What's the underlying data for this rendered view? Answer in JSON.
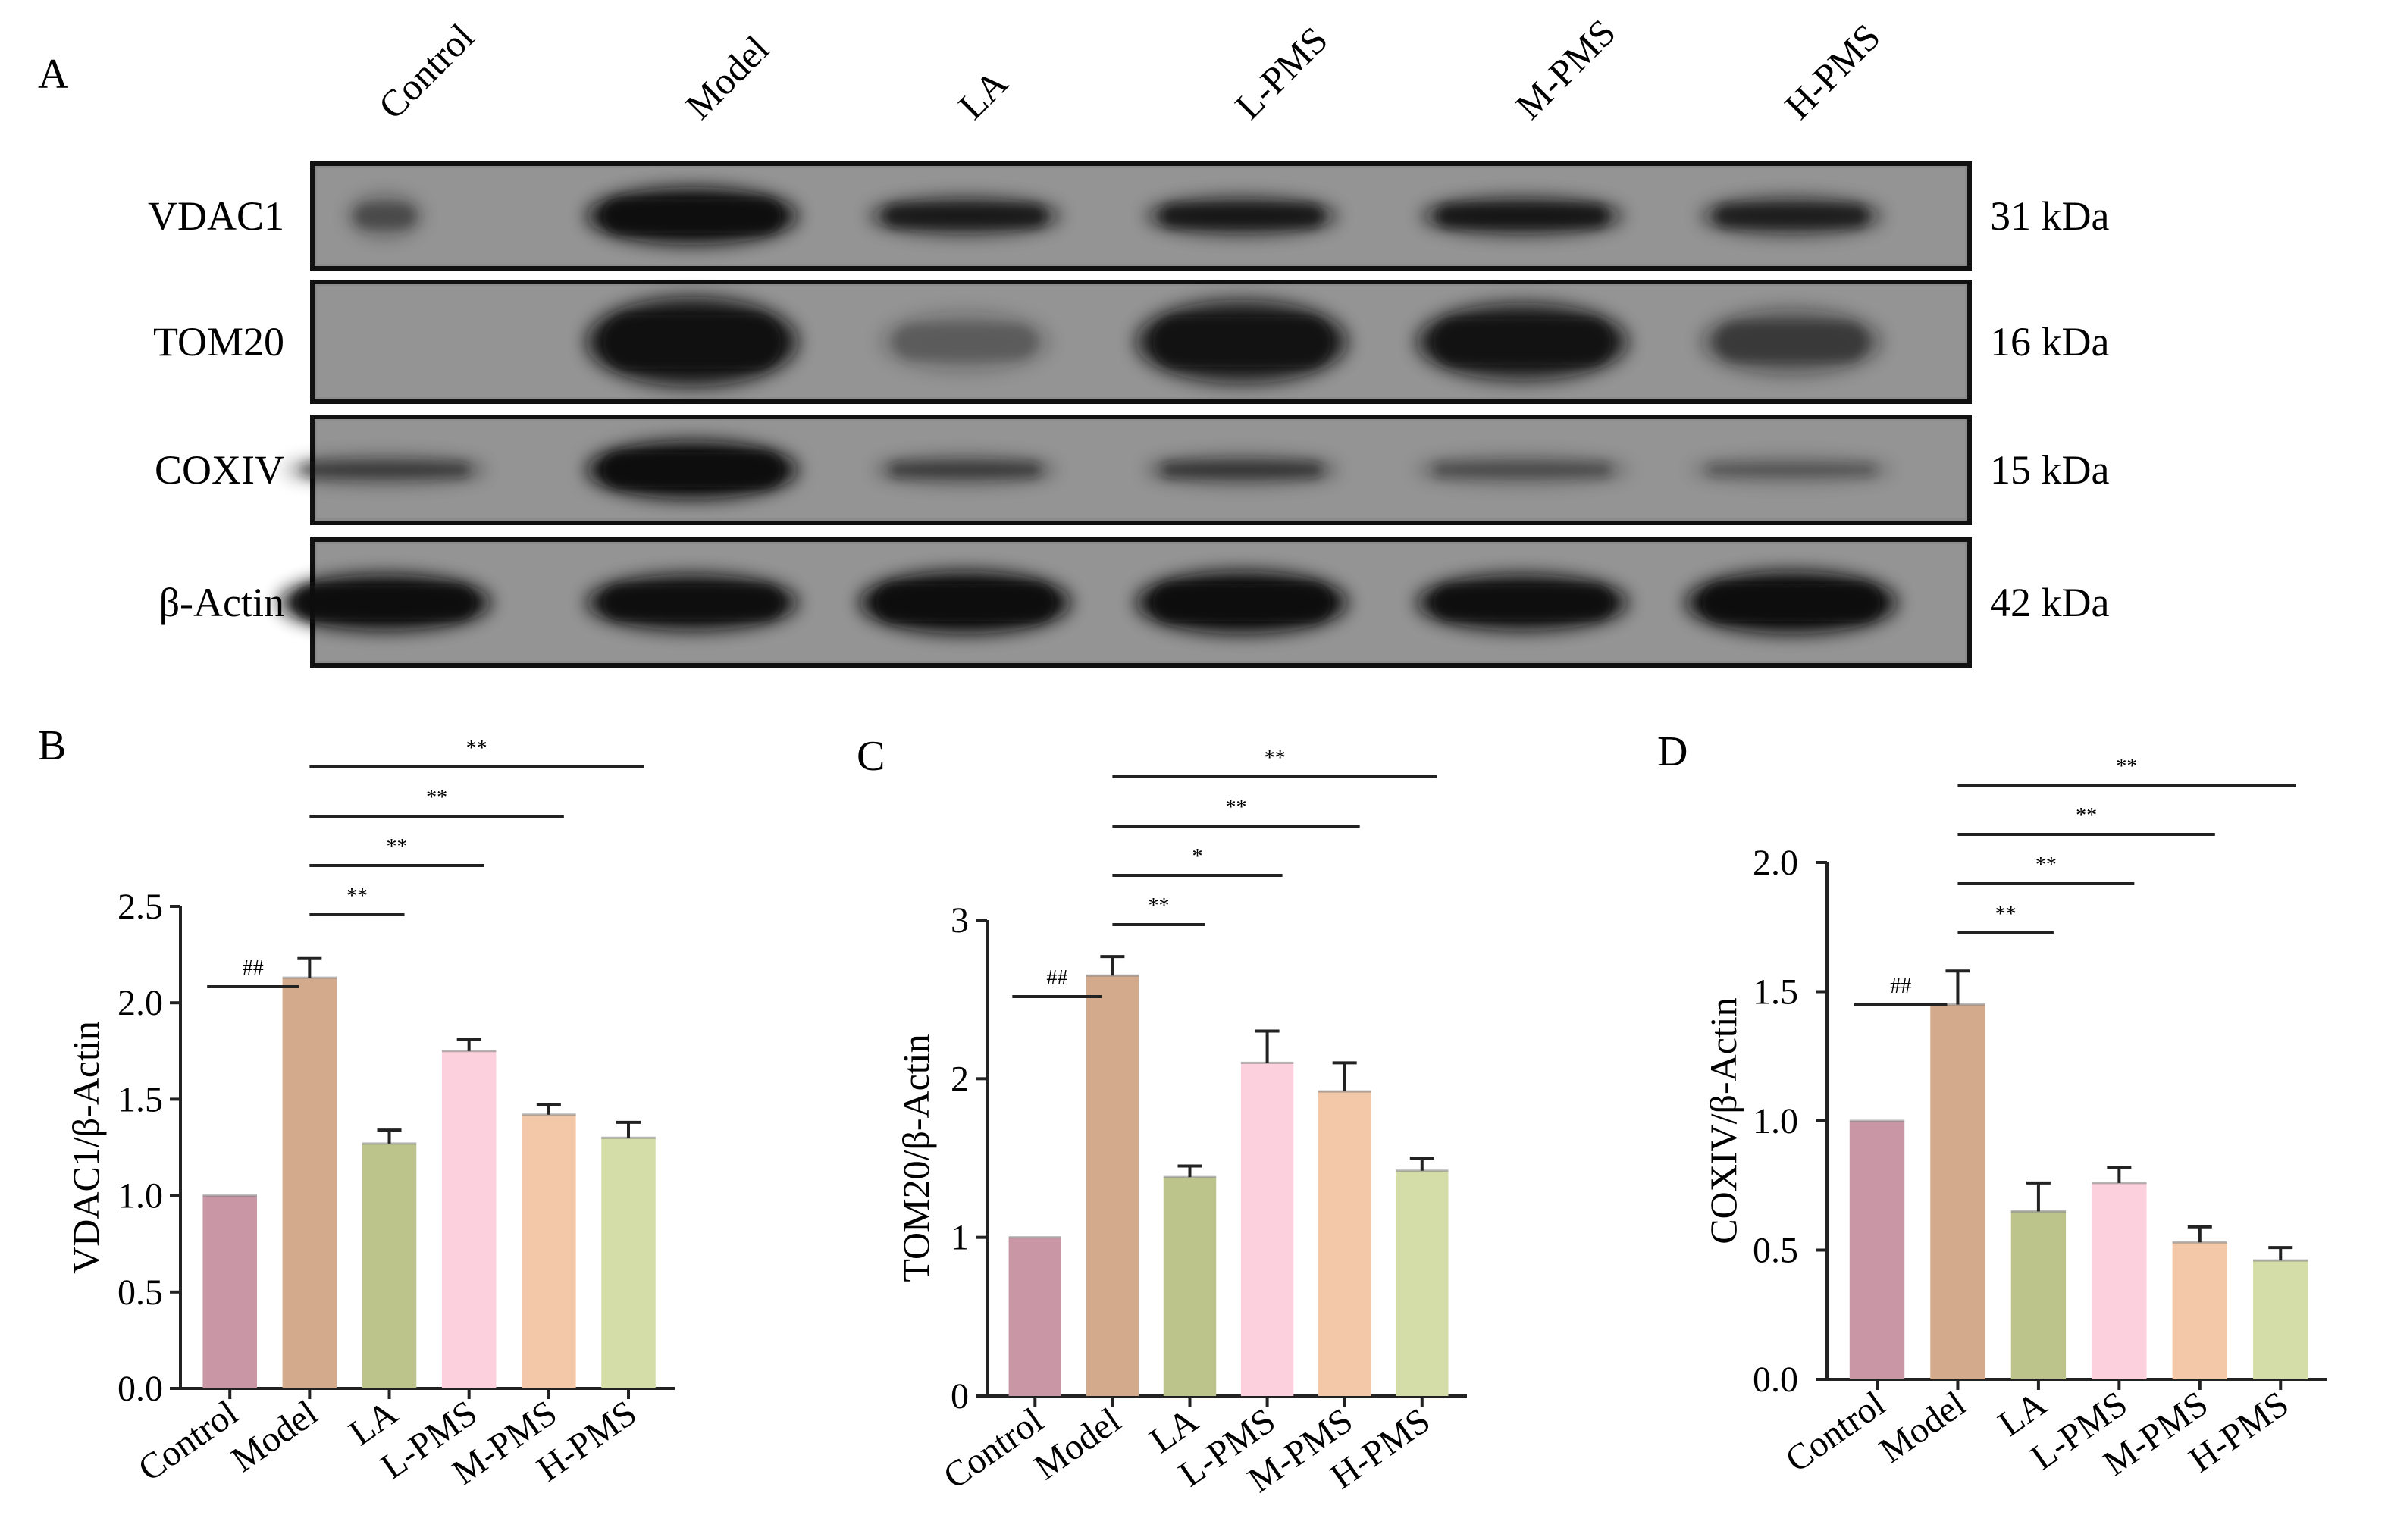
{
  "panel_letters": {
    "a": "A",
    "b": "B",
    "c": "C",
    "d": "D"
  },
  "blot": {
    "lanes": [
      "Control",
      "Model",
      "LA",
      "L-PMS",
      "M-PMS",
      "H-PMS"
    ],
    "rows": [
      {
        "protein": "VDAC1",
        "size": "31 kDa"
      },
      {
        "protein": "TOM20",
        "size": "16 kDa"
      },
      {
        "protein": "COXIV",
        "size": "15 kDa"
      },
      {
        "protein": "β-Actin",
        "size": "42 kDa"
      }
    ]
  },
  "colors": {
    "Control": "#c896a5",
    "Model": "#d4aa8c",
    "LA": "#bcc48c",
    "L-PMS": "#fcd0dc",
    "M-PMS": "#f2c8a8",
    "H-PMS": "#d4dca8",
    "line": "#222222",
    "blot_bg": "#8c8c8c"
  },
  "chart_data": [
    {
      "type": "bar",
      "panel": "B",
      "categories": [
        "Control",
        "Model",
        "LA",
        "L-PMS",
        "M-PMS",
        "H-PMS"
      ],
      "values": [
        1.0,
        2.13,
        1.27,
        1.75,
        1.42,
        1.3
      ],
      "errors": [
        0.0,
        0.1,
        0.07,
        0.06,
        0.05,
        0.08
      ],
      "ylabel": "VDAC1/β-Actin",
      "ylim": [
        0,
        2.5
      ],
      "yticks": [
        "0.0",
        "0.5",
        "1.0",
        "1.5",
        "2.0",
        "2.5"
      ],
      "significance": [
        {
          "from": "Control",
          "to": "Model",
          "label": "##"
        },
        {
          "from": "Model",
          "to": "LA",
          "label": "**"
        },
        {
          "from": "Model",
          "to": "L-PMS",
          "label": "**"
        },
        {
          "from": "Model",
          "to": "M-PMS",
          "label": "**"
        },
        {
          "from": "Model",
          "to": "H-PMS",
          "label": "**"
        }
      ]
    },
    {
      "type": "bar",
      "panel": "C",
      "categories": [
        "Control",
        "Model",
        "LA",
        "L-PMS",
        "M-PMS",
        "H-PMS"
      ],
      "values": [
        1.0,
        2.65,
        1.38,
        2.1,
        1.92,
        1.42
      ],
      "errors": [
        0.0,
        0.12,
        0.07,
        0.2,
        0.18,
        0.08
      ],
      "ylabel": "TOM20/β-Actin",
      "ylim": [
        0,
        3
      ],
      "yticks": [
        "0",
        "1",
        "2",
        "3"
      ],
      "significance": [
        {
          "from": "Control",
          "to": "Model",
          "label": "##"
        },
        {
          "from": "Model",
          "to": "LA",
          "label": "**"
        },
        {
          "from": "Model",
          "to": "L-PMS",
          "label": "*"
        },
        {
          "from": "Model",
          "to": "M-PMS",
          "label": "**"
        },
        {
          "from": "Model",
          "to": "H-PMS",
          "label": "**"
        }
      ]
    },
    {
      "type": "bar",
      "panel": "D",
      "categories": [
        "Control",
        "Model",
        "LA",
        "L-PMS",
        "M-PMS",
        "H-PMS"
      ],
      "values": [
        1.0,
        1.45,
        0.65,
        0.76,
        0.53,
        0.46
      ],
      "errors": [
        0.0,
        0.13,
        0.11,
        0.06,
        0.06,
        0.05
      ],
      "ylabel": "COXIV/β-Actin",
      "ylim": [
        0,
        2.0
      ],
      "yticks": [
        "0.0",
        "0.5",
        "1.0",
        "1.5",
        "2.0"
      ],
      "significance": [
        {
          "from": "Control",
          "to": "Model",
          "label": "##"
        },
        {
          "from": "Model",
          "to": "LA",
          "label": "**"
        },
        {
          "from": "Model",
          "to": "L-PMS",
          "label": "**"
        },
        {
          "from": "Model",
          "to": "M-PMS",
          "label": "**"
        },
        {
          "from": "Model",
          "to": "H-PMS",
          "label": "**"
        }
      ]
    }
  ]
}
